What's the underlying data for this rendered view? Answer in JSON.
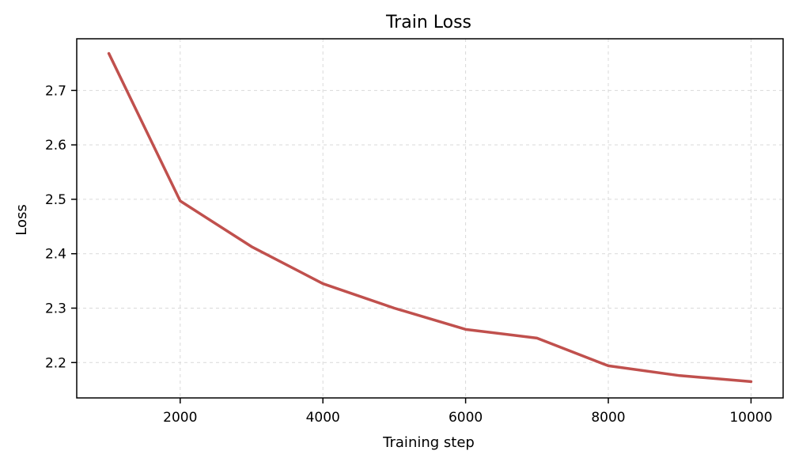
{
  "chart_data": {
    "type": "line",
    "title": "Train Loss",
    "xlabel": "Training step",
    "ylabel": "Loss",
    "x": [
      1000,
      2000,
      3000,
      4000,
      5000,
      6000,
      7000,
      8000,
      9000,
      10000
    ],
    "series": [
      {
        "values": [
          2.768,
          2.497,
          2.413,
          2.345,
          2.3,
          2.261,
          2.245,
          2.194,
          2.176,
          2.165
        ],
        "color": "#c0504d"
      }
    ],
    "xlim": [
      550,
      10450
    ],
    "ylim": [
      2.135,
      2.795
    ],
    "xticks": [
      2000,
      4000,
      6000,
      8000,
      10000
    ],
    "yticks": [
      2.2,
      2.3,
      2.4,
      2.5,
      2.6,
      2.7
    ],
    "xtick_labels": [
      "2000",
      "4000",
      "6000",
      "8000",
      "10000"
    ],
    "ytick_labels": [
      "2.2",
      "2.3",
      "2.4",
      "2.5",
      "2.6",
      "2.7"
    ],
    "grid": true,
    "legend": "none"
  }
}
